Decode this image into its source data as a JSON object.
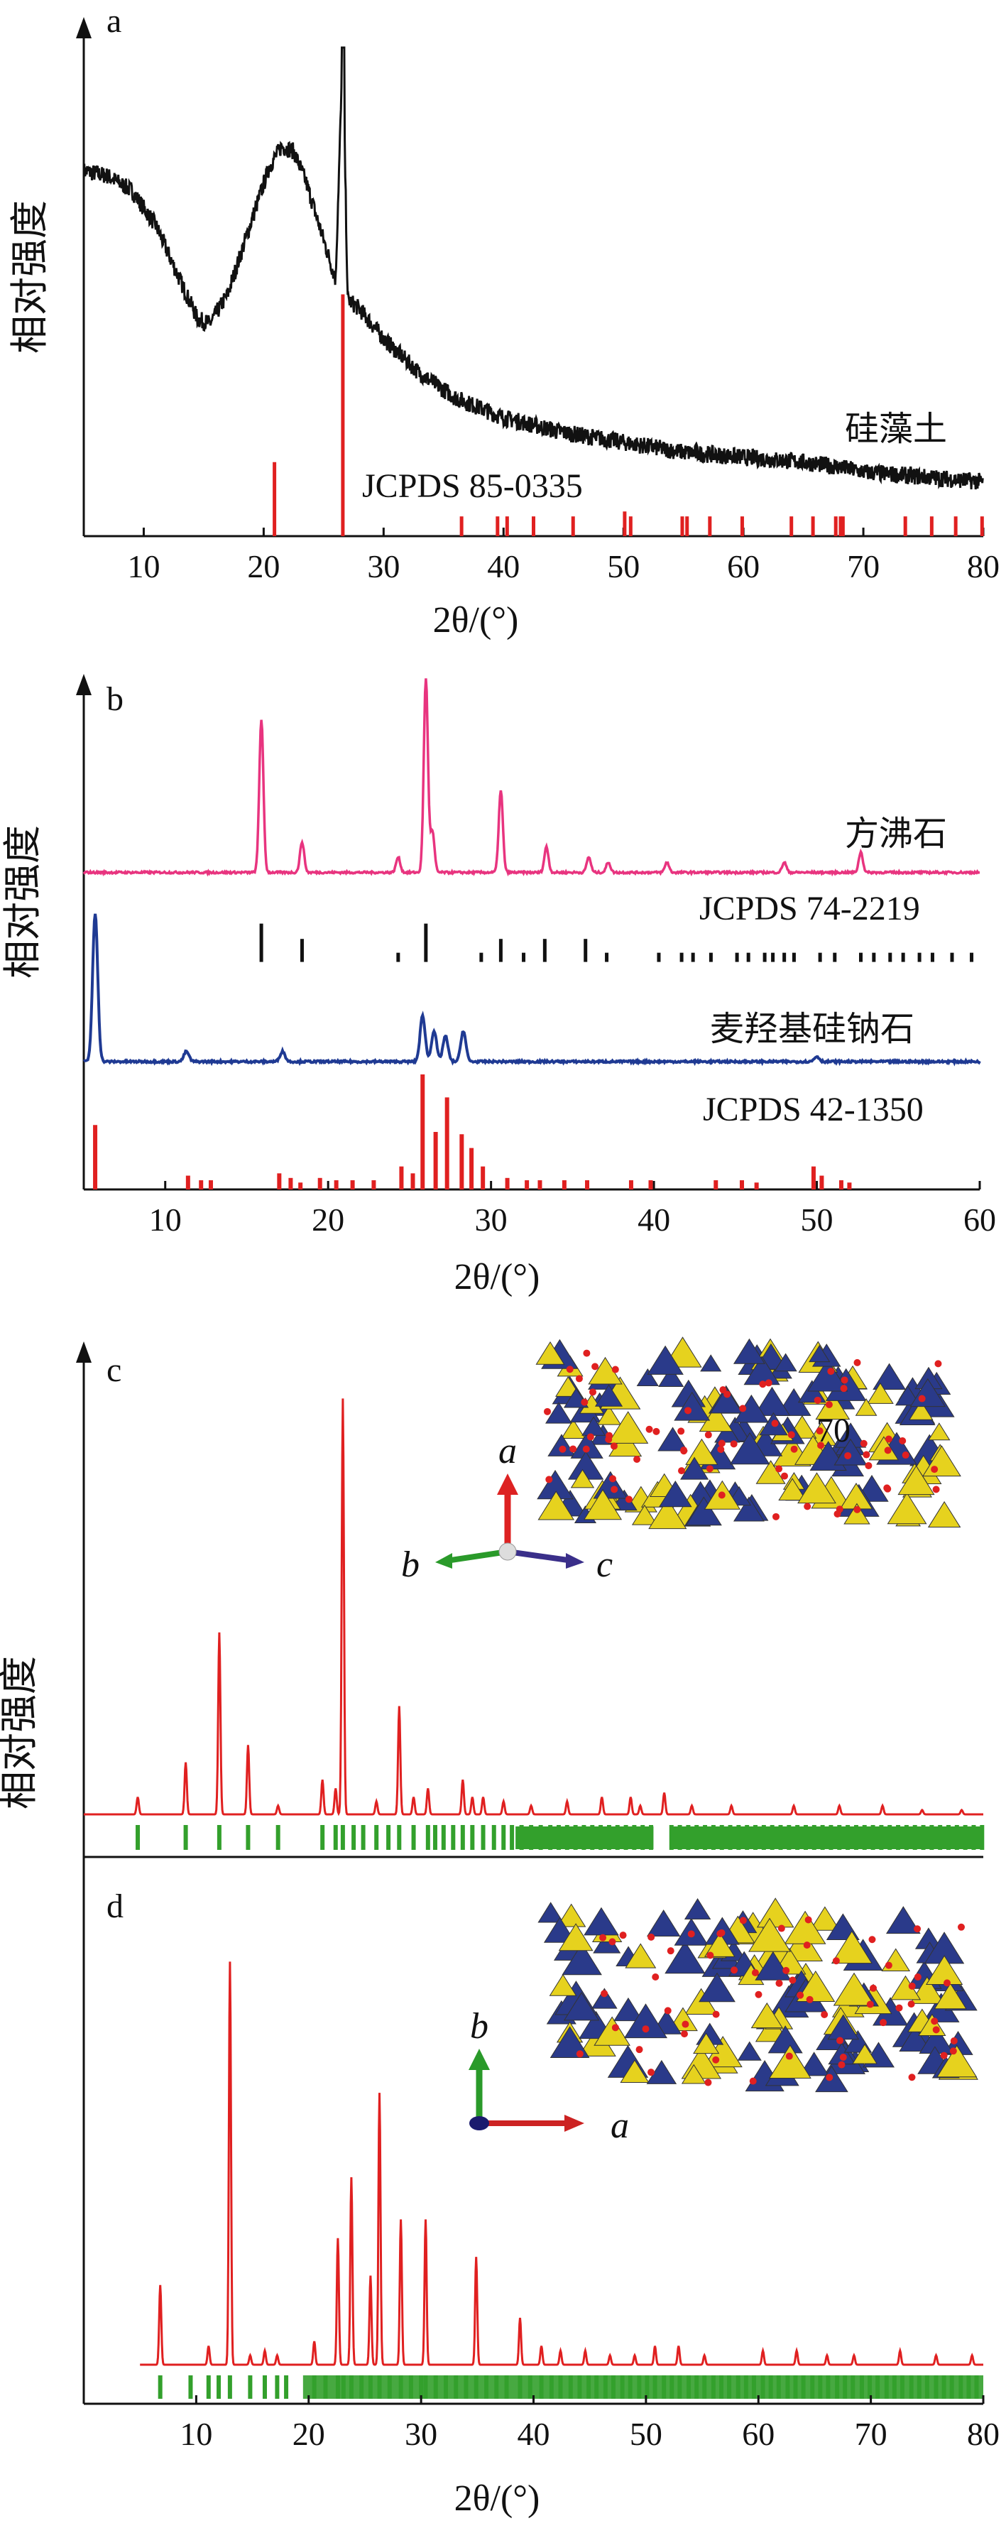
{
  "colors": {
    "axis": "#111111",
    "black": "#111111",
    "pink": "#e8347f",
    "navy": "#1f3a93",
    "red": "#e02020",
    "green": "#33a02c",
    "blue": "#2a3a8a",
    "yellow": "#e6d21e"
  },
  "chart_data": [
    {
      "id": "a",
      "type": "line",
      "panel_label": "a",
      "xlabel": "2θ/(°)",
      "ylabel": "相对强度",
      "xlim": [
        5,
        80
      ],
      "xticks": [
        10,
        20,
        30,
        40,
        50,
        60,
        70,
        80
      ],
      "series": [
        {
          "name": "硅藻土",
          "color": "#111111",
          "points": [
            [
              5,
              0.74
            ],
            [
              7,
              0.73
            ],
            [
              9,
              0.7
            ],
            [
              11,
              0.63
            ],
            [
              13,
              0.52
            ],
            [
              14.5,
              0.44
            ],
            [
              15.5,
              0.43
            ],
            [
              17,
              0.49
            ],
            [
              19,
              0.64
            ],
            [
              20.5,
              0.75
            ],
            [
              21.5,
              0.79
            ],
            [
              22.5,
              0.78
            ],
            [
              23.5,
              0.72
            ],
            [
              25,
              0.6
            ],
            [
              26,
              0.52
            ],
            [
              26.6,
              0.99
            ],
            [
              27,
              0.48
            ],
            [
              28,
              0.46
            ],
            [
              30,
              0.4
            ],
            [
              33,
              0.33
            ],
            [
              36,
              0.28
            ],
            [
              40,
              0.24
            ],
            [
              45,
              0.21
            ],
            [
              50,
              0.19
            ],
            [
              55,
              0.17
            ],
            [
              60,
              0.16
            ],
            [
              65,
              0.15
            ],
            [
              68,
              0.14
            ],
            [
              70,
              0.13
            ],
            [
              75,
              0.12
            ],
            [
              80,
              0.11
            ]
          ]
        }
      ],
      "reference": {
        "name": "JCPDS 85-0335",
        "color": "#e02020",
        "peaks": [
          [
            20.9,
            0.15
          ],
          [
            26.6,
            0.49
          ],
          [
            36.5,
            0.04
          ],
          [
            39.5,
            0.04
          ],
          [
            40.3,
            0.04
          ],
          [
            42.5,
            0.04
          ],
          [
            45.8,
            0.04
          ],
          [
            50.1,
            0.05
          ],
          [
            50.6,
            0.04
          ],
          [
            54.9,
            0.04
          ],
          [
            55.3,
            0.04
          ],
          [
            57.2,
            0.04
          ],
          [
            59.9,
            0.04
          ],
          [
            64.0,
            0.04
          ],
          [
            65.8,
            0.04
          ],
          [
            67.7,
            0.04
          ],
          [
            68.1,
            0.04
          ],
          [
            68.3,
            0.04
          ],
          [
            73.5,
            0.04
          ],
          [
            75.7,
            0.04
          ],
          [
            77.7,
            0.04
          ],
          [
            79.9,
            0.04
          ]
        ]
      }
    },
    {
      "id": "b",
      "type": "line",
      "panel_label": "b",
      "xlabel": "2θ/(°)",
      "ylabel": "相对强度",
      "xlim": [
        5,
        60
      ],
      "xticks": [
        10,
        20,
        30,
        40,
        50,
        60
      ],
      "series": [
        {
          "name": "方沸石",
          "color": "#e8347f",
          "baseline": 0.62,
          "peaks": [
            [
              15.9,
              0.3
            ],
            [
              18.4,
              0.06
            ],
            [
              24.3,
              0.03
            ],
            [
              26.0,
              0.38
            ],
            [
              26.4,
              0.08
            ],
            [
              30.6,
              0.16
            ],
            [
              33.4,
              0.05
            ],
            [
              36.0,
              0.03
            ],
            [
              37.2,
              0.02
            ],
            [
              40.8,
              0.02
            ],
            [
              48.0,
              0.02
            ],
            [
              52.7,
              0.04
            ]
          ]
        },
        {
          "name": "麦羟基硅钠石",
          "color": "#1f3a93",
          "baseline": 0.25,
          "peaks": [
            [
              5.7,
              0.29
            ],
            [
              11.3,
              0.02
            ],
            [
              17.2,
              0.02
            ],
            [
              25.8,
              0.09
            ],
            [
              26.5,
              0.06
            ],
            [
              27.2,
              0.05
            ],
            [
              28.3,
              0.06
            ],
            [
              50.0,
              0.01
            ]
          ]
        }
      ],
      "references": [
        {
          "name": "JCPDS 74-2219",
          "color": "#111111",
          "peaks": [
            15.9,
            18.4,
            24.3,
            26.0,
            29.4,
            30.6,
            32.0,
            33.3,
            35.8,
            37.1,
            40.3,
            41.7,
            42.4,
            43.5,
            45.1,
            45.8,
            46.8,
            47.3,
            48.0,
            48.6,
            50.2,
            51.1,
            52.7,
            53.5,
            54.5,
            55.3,
            56.3,
            57.1,
            58.3,
            59.5
          ]
        },
        {
          "name": "JCPDS 42-1350",
          "color": "#e02020",
          "peaks": [
            [
              5.7,
              0.28
            ],
            [
              11.4,
              0.06
            ],
            [
              12.2,
              0.04
            ],
            [
              12.8,
              0.04
            ],
            [
              17.0,
              0.07
            ],
            [
              17.7,
              0.05
            ],
            [
              18.3,
              0.03
            ],
            [
              19.5,
              0.05
            ],
            [
              20.5,
              0.04
            ],
            [
              21.5,
              0.04
            ],
            [
              22.8,
              0.04
            ],
            [
              24.5,
              0.1
            ],
            [
              25.2,
              0.07
            ],
            [
              25.8,
              0.5
            ],
            [
              26.6,
              0.25
            ],
            [
              27.3,
              0.4
            ],
            [
              28.2,
              0.24
            ],
            [
              28.8,
              0.18
            ],
            [
              29.5,
              0.1
            ],
            [
              31.0,
              0.05
            ],
            [
              32.2,
              0.04
            ],
            [
              33.0,
              0.04
            ],
            [
              34.5,
              0.04
            ],
            [
              35.9,
              0.04
            ],
            [
              38.6,
              0.04
            ],
            [
              39.8,
              0.04
            ],
            [
              43.8,
              0.04
            ],
            [
              45.4,
              0.04
            ],
            [
              46.3,
              0.03
            ],
            [
              49.8,
              0.1
            ],
            [
              50.3,
              0.06
            ],
            [
              51.5,
              0.04
            ],
            [
              52.0,
              0.03
            ]
          ]
        }
      ]
    },
    {
      "id": "c",
      "type": "line",
      "panel_label": "c",
      "xlim": [
        5,
        80
      ],
      "crystal_label": "70",
      "axes_labels": [
        "a",
        "b",
        "c"
      ],
      "series": [
        {
          "name": "",
          "color": "#e02020",
          "peaks": [
            [
              9.5,
              0.04
            ],
            [
              13.5,
              0.12
            ],
            [
              16.3,
              0.42
            ],
            [
              18.7,
              0.16
            ],
            [
              21.2,
              0.02
            ],
            [
              24.9,
              0.08
            ],
            [
              26.0,
              0.06
            ],
            [
              26.6,
              0.96
            ],
            [
              29.4,
              0.03
            ],
            [
              31.3,
              0.25
            ],
            [
              32.5,
              0.04
            ],
            [
              33.7,
              0.06
            ],
            [
              36.6,
              0.08
            ],
            [
              37.4,
              0.04
            ],
            [
              38.3,
              0.04
            ],
            [
              40.0,
              0.03
            ],
            [
              42.3,
              0.02
            ],
            [
              45.3,
              0.03
            ],
            [
              48.2,
              0.04
            ],
            [
              50.6,
              0.04
            ],
            [
              51.4,
              0.02
            ],
            [
              53.4,
              0.05
            ],
            [
              55.7,
              0.02
            ],
            [
              59.0,
              0.02
            ],
            [
              64.2,
              0.02
            ],
            [
              68.0,
              0.02
            ],
            [
              71.6,
              0.02
            ],
            [
              74.9,
              0.01
            ],
            [
              78.2,
              0.01
            ]
          ]
        }
      ],
      "reference": {
        "color": "#33a02c",
        "peaks": [
          9.5,
          13.5,
          16.3,
          18.7,
          21.2,
          24.9,
          26.0,
          26.6,
          27.5,
          28.3,
          29.4,
          30.4,
          31.3,
          32.5,
          33.7,
          34.3,
          35.0,
          35.8,
          36.6,
          37.4,
          38.3,
          39.2,
          40.0,
          40.7,
          41.5,
          42.3,
          43.1,
          43.9,
          44.6,
          45.3,
          46.0,
          46.7,
          47.4,
          48.1,
          48.8,
          49.5,
          50.2,
          50.9,
          51.6,
          52.3,
          54.0,
          54.7,
          55.4,
          56.1,
          56.8,
          57.5,
          58.2,
          58.9,
          59.6,
          60.3,
          61.0,
          61.7,
          62.4,
          63.1,
          63.8,
          64.5,
          65.2,
          65.9,
          66.6,
          67.3,
          68.0,
          68.7,
          69.4,
          70.1,
          70.8,
          71.5,
          72.2,
          72.9,
          73.6,
          74.3,
          75.0,
          75.7,
          76.4,
          77.1,
          77.8,
          78.5,
          79.2,
          79.9
        ]
      }
    },
    {
      "id": "d",
      "type": "line",
      "panel_label": "d",
      "xlabel": "2θ/(°)",
      "xlim": [
        0,
        80
      ],
      "xticks": [
        10,
        20,
        30,
        40,
        50,
        60,
        70,
        80
      ],
      "axes_labels": [
        "a",
        "b"
      ],
      "series": [
        {
          "name": "",
          "color": "#e02020",
          "peaks": [
            [
              6.8,
              0.17
            ],
            [
              11.1,
              0.04
            ],
            [
              13.0,
              0.86
            ],
            [
              14.8,
              0.02
            ],
            [
              16.1,
              0.03
            ],
            [
              17.2,
              0.02
            ],
            [
              20.5,
              0.05
            ],
            [
              22.6,
              0.27
            ],
            [
              23.8,
              0.4
            ],
            [
              25.5,
              0.19
            ],
            [
              26.3,
              0.58
            ],
            [
              28.2,
              0.31
            ],
            [
              30.4,
              0.31
            ],
            [
              34.9,
              0.23
            ],
            [
              38.8,
              0.1
            ],
            [
              40.7,
              0.04
            ],
            [
              42.4,
              0.03
            ],
            [
              44.6,
              0.03
            ],
            [
              46.8,
              0.02
            ],
            [
              49.0,
              0.02
            ],
            [
              50.8,
              0.04
            ],
            [
              52.9,
              0.04
            ],
            [
              55.2,
              0.02
            ],
            [
              60.4,
              0.03
            ],
            [
              63.4,
              0.03
            ],
            [
              66.1,
              0.02
            ],
            [
              68.5,
              0.02
            ],
            [
              72.6,
              0.03
            ],
            [
              75.8,
              0.02
            ],
            [
              79.0,
              0.02
            ]
          ]
        }
      ],
      "reference": {
        "color": "#33a02c",
        "peaks": [
          6.8,
          9.5,
          11.1,
          12.0,
          13.0,
          14.8,
          16.1,
          17.2,
          18.0,
          20.5,
          21.5,
          22.6,
          23.1,
          23.8,
          24.7,
          25.5,
          26.3,
          27.2,
          28.2,
          29.1,
          30.0,
          30.4,
          31.3,
          32.2,
          33.1,
          34.0,
          34.9,
          35.8,
          36.7,
          37.6,
          38.8,
          39.7,
          40.7,
          41.6,
          42.4,
          43.3,
          44.1,
          44.9,
          45.6,
          46.4,
          47.1,
          47.9,
          48.6,
          49.4,
          50.1,
          50.8,
          51.6,
          52.3,
          53.0,
          53.8,
          54.5,
          55.2,
          56.0,
          56.7,
          57.4,
          58.2,
          58.9,
          59.6,
          60.4,
          61.1,
          61.8,
          62.6,
          63.3,
          64.0,
          64.8,
          65.5,
          66.2,
          67.0,
          67.7,
          68.4,
          69.2,
          69.9,
          70.6,
          71.4,
          72.1,
          72.8,
          73.6,
          74.3,
          75.0,
          75.8,
          76.5,
          77.2,
          78.0,
          78.7,
          79.4
        ]
      }
    }
  ]
}
